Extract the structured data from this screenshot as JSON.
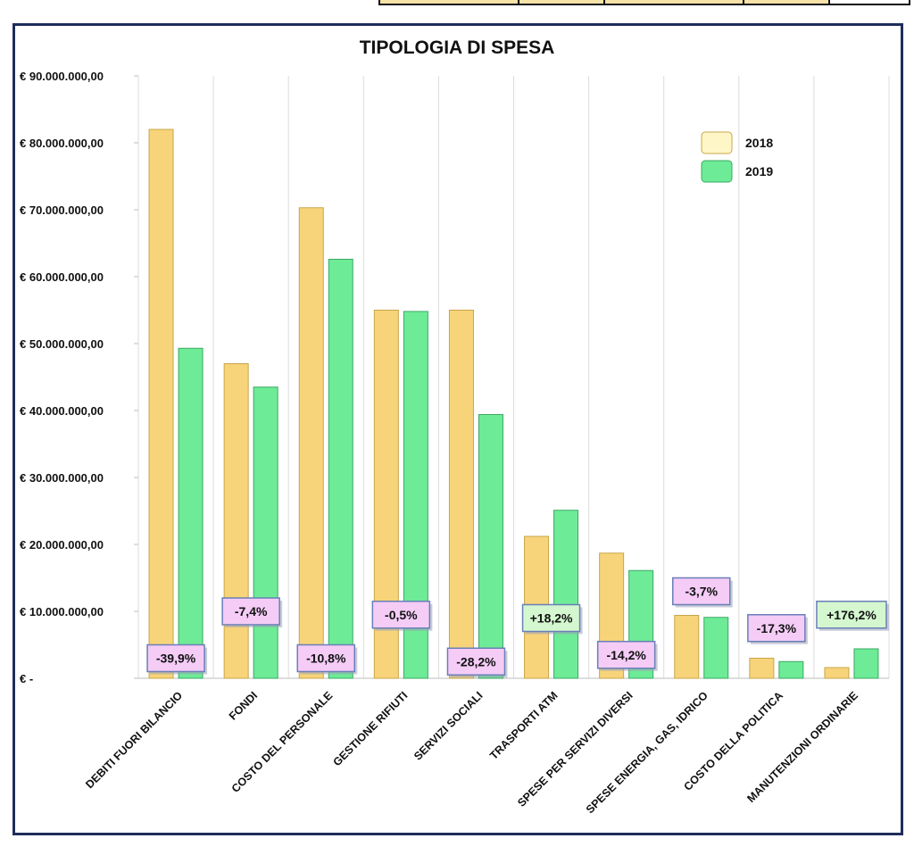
{
  "colors": {
    "series_2018": "#f7d47a",
    "series_2018_stroke": "#c9a54a",
    "series_2019": "#6eeb96",
    "series_2019_stroke": "#3aa863",
    "legend_2018": "#fff6c8",
    "badge_negative": "#f4ccf6",
    "badge_positive": "#d4f7cf",
    "badge_border": "#6a7fb8",
    "frame": "#1f2d5a"
  },
  "chart_data": {
    "type": "bar",
    "title": "TIPOLOGIA DI SPESA",
    "categories": [
      "DEBITI FUORI BILANCIO",
      "FONDI",
      "COSTO DEL PERSONALE",
      "GESTIONE RIFIUTI",
      "SERVIZI SOCIALI",
      "TRASPORTI ATM",
      "SPESE PER SERVIZI DIVERSI",
      "SPESE ENERGIA, GAS, IDRICO",
      "COSTO DELLA POLITICA",
      "MANUTENZIONI ORDINARIE"
    ],
    "series": [
      {
        "name": "2018",
        "values": [
          82000000,
          47000000,
          70300000,
          55000000,
          55000000,
          21200000,
          18700000,
          9400000,
          3000000,
          1600000
        ]
      },
      {
        "name": "2019",
        "values": [
          49300000,
          43500000,
          62600000,
          54800000,
          39400000,
          25100000,
          16100000,
          9100000,
          2500000,
          4400000
        ]
      }
    ],
    "variations": [
      "-39,9%",
      "-7,4%",
      "-10,8%",
      "-0,5%",
      "-28,2%",
      "+18,2%",
      "-14,2%",
      "-3,7%",
      "-17,3%",
      "+176,2%"
    ],
    "variation_levels": [
      3000000,
      10000000,
      3000000,
      9500000,
      2500000,
      9000000,
      3500000,
      13000000,
      7500000,
      9500000
    ],
    "yticks": [
      {
        "value": 90000000,
        "label": "€ 90.000.000,00"
      },
      {
        "value": 80000000,
        "label": "€ 80.000.000,00"
      },
      {
        "value": 70000000,
        "label": "€ 70.000.000,00"
      },
      {
        "value": 60000000,
        "label": "€ 60.000.000,00"
      },
      {
        "value": 50000000,
        "label": "€ 50.000.000,00"
      },
      {
        "value": 40000000,
        "label": "€ 40.000.000,00"
      },
      {
        "value": 30000000,
        "label": "€ 30.000.000,00"
      },
      {
        "value": 20000000,
        "label": "€ 20.000.000,00"
      },
      {
        "value": 10000000,
        "label": "€ 10.000.000,00"
      },
      {
        "value": 0,
        "label": "€ -"
      }
    ],
    "ylim": [
      0,
      90000000
    ],
    "grid": "vertical",
    "legend_position": "top-right"
  }
}
